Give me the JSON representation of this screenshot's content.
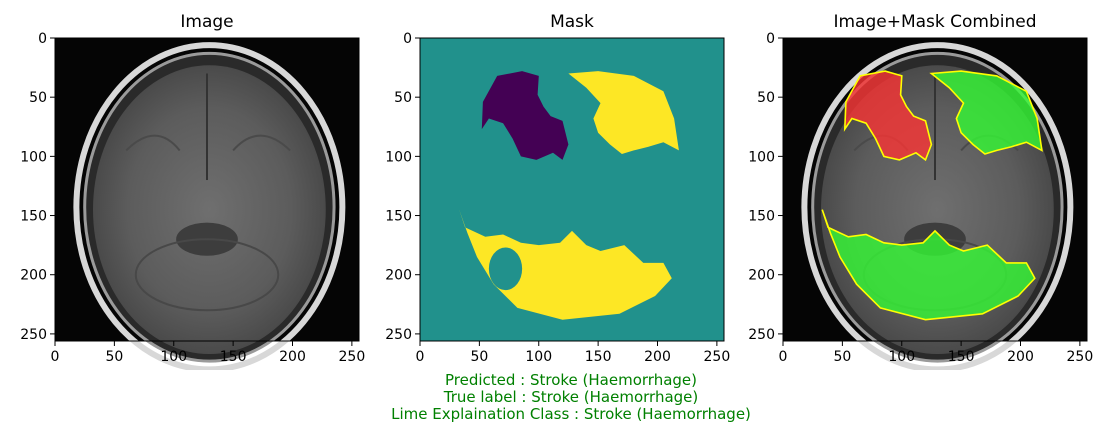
{
  "panels": [
    {
      "title": "Image",
      "kind": "mri"
    },
    {
      "title": "Mask",
      "kind": "mask"
    },
    {
      "title": "Image+Mask Combined",
      "kind": "combined"
    }
  ],
  "chart_data": [
    {
      "type": "heatmap",
      "title": "Image",
      "xlim": [
        0,
        256
      ],
      "ylim": [
        256,
        0
      ],
      "xticks": [
        0,
        50,
        100,
        150,
        200,
        250
      ],
      "yticks": [
        0,
        50,
        100,
        150,
        200,
        250
      ],
      "colormap": "gray"
    },
    {
      "type": "heatmap",
      "title": "Mask",
      "xlim": [
        0,
        256
      ],
      "ylim": [
        256,
        0
      ],
      "xticks": [
        0,
        50,
        100,
        150,
        200,
        250
      ],
      "yticks": [
        0,
        50,
        100,
        150,
        200,
        250
      ],
      "colormap": "viridis",
      "colors": {
        "background": "#21918c",
        "negative": "#440154",
        "positive": "#fde725"
      },
      "regions": {
        "negative": [
          [
            53,
            54
          ],
          [
            65,
            32
          ],
          [
            86,
            28
          ],
          [
            100,
            32
          ],
          [
            99,
            48
          ],
          [
            104,
            58
          ],
          [
            110,
            66
          ],
          [
            120,
            70
          ],
          [
            125,
            90
          ],
          [
            120,
            103
          ],
          [
            112,
            97
          ],
          [
            98,
            103
          ],
          [
            85,
            100
          ],
          [
            78,
            85
          ],
          [
            70,
            72
          ],
          [
            58,
            68
          ],
          [
            52,
            77
          ]
        ],
        "positive_top": [
          [
            125,
            30
          ],
          [
            150,
            28
          ],
          [
            180,
            32
          ],
          [
            205,
            45
          ],
          [
            214,
            68
          ],
          [
            218,
            95
          ],
          [
            205,
            88
          ],
          [
            192,
            92
          ],
          [
            180,
            95
          ],
          [
            170,
            98
          ],
          [
            160,
            90
          ],
          [
            150,
            80
          ],
          [
            146,
            68
          ],
          [
            152,
            55
          ],
          [
            140,
            42
          ]
        ],
        "positive_bottom": [
          [
            33,
            145
          ],
          [
            40,
            165
          ],
          [
            48,
            185
          ],
          [
            62,
            208
          ],
          [
            82,
            228
          ],
          [
            120,
            238
          ],
          [
            168,
            233
          ],
          [
            198,
            218
          ],
          [
            212,
            203
          ],
          [
            205,
            190
          ],
          [
            188,
            190
          ],
          [
            172,
            175
          ],
          [
            152,
            180
          ],
          [
            140,
            175
          ],
          [
            128,
            163
          ],
          [
            118,
            173
          ],
          [
            100,
            175
          ],
          [
            85,
            173
          ],
          [
            70,
            166
          ],
          [
            55,
            168
          ],
          [
            38,
            160
          ]
        ]
      }
    },
    {
      "type": "heatmap",
      "title": "Image+Mask Combined",
      "xlim": [
        0,
        256
      ],
      "ylim": [
        256,
        0
      ],
      "xticks": [
        0,
        50,
        100,
        150,
        200,
        250
      ],
      "yticks": [
        0,
        50,
        100,
        150,
        200,
        250
      ],
      "colors": {
        "negative": "#ff3333",
        "positive": "#33ff33",
        "boundary": "#ffff00"
      }
    }
  ],
  "caption": {
    "predicted": "Predicted : Stroke (Haemorrhage)",
    "true_label": "True label : Stroke (Haemorrhage)",
    "lime_class": "Lime Explaination Class : Stroke (Haemorrhage)"
  }
}
